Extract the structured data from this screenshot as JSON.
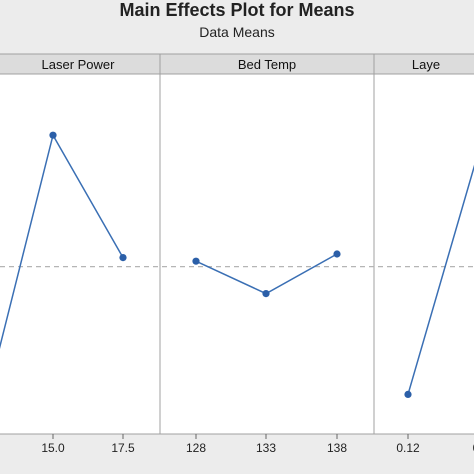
{
  "chart_data": {
    "type": "line",
    "title": "Main Effects Plot for Means",
    "subtitle": "Data Means",
    "grand_mean_line": "dashed",
    "grid": false,
    "ylim": [
      0,
      1
    ],
    "panels": [
      {
        "name": "Laser Power",
        "categories": [
          "",
          "15.0",
          "17.5"
        ],
        "values": [
          0.2,
          0.83,
          0.49
        ],
        "markers": [
          false,
          true,
          true
        ]
      },
      {
        "name": "Bed Temp",
        "categories": [
          "128",
          "133",
          "138"
        ],
        "values": [
          0.48,
          0.39,
          0.5
        ],
        "markers": [
          true,
          true,
          true
        ]
      },
      {
        "name": "Laye",
        "categories": [
          "0.12",
          "0"
        ],
        "values": [
          0.11,
          0.76
        ],
        "markers": [
          true,
          false
        ]
      }
    ],
    "grand_mean": 0.465
  },
  "colors": {
    "line": "#3a6fb4",
    "marker": "#2b5fa8",
    "mean_line": "#b5b5b5",
    "panel_bg": "#ffffff",
    "strip_bg": "#dcdcdc",
    "axis": "#a0a0a0"
  }
}
